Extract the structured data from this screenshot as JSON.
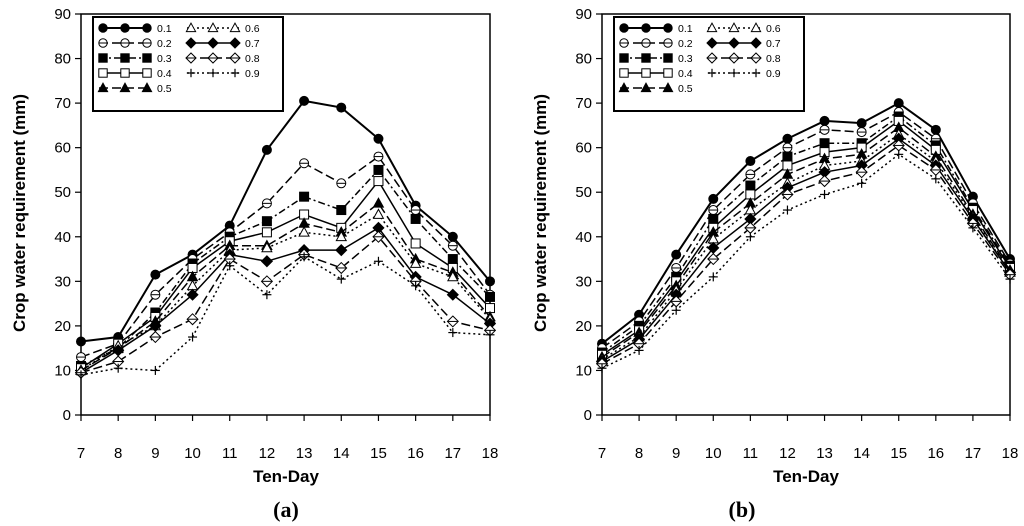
{
  "chart_data": [
    {
      "type": "line",
      "panel_label": "(a)",
      "xlabel": "Ten-Day",
      "ylabel": "Crop water requirement (mm)",
      "x": [
        7,
        8,
        9,
        10,
        11,
        12,
        13,
        14,
        15,
        16,
        17,
        18
      ],
      "xlim": [
        7,
        18
      ],
      "ylim": [
        0,
        90
      ],
      "yticks": [
        0,
        10,
        20,
        30,
        40,
        50,
        60,
        70,
        80,
        90
      ],
      "grid": false,
      "legend_position": "top-left",
      "series": [
        {
          "name": "0.1",
          "marker": "filled-circle",
          "line": "solid",
          "values": [
            16.5,
            17.5,
            31.5,
            36,
            42.5,
            59.5,
            70.5,
            69,
            62,
            47,
            40,
            30
          ]
        },
        {
          "name": "0.2",
          "marker": "open-circle",
          "line": "long-dash",
          "values": [
            13,
            16,
            27,
            35,
            41,
            47.5,
            56.5,
            52,
            58,
            46,
            38,
            27
          ]
        },
        {
          "name": "0.3",
          "marker": "filled-square",
          "line": "dash-dot",
          "values": [
            11,
            15,
            23,
            34,
            40,
            43.5,
            49,
            46,
            55,
            44,
            35,
            26.5
          ]
        },
        {
          "name": "0.4",
          "marker": "open-square",
          "line": "solid",
          "values": [
            10.5,
            16,
            22,
            33,
            39,
            41,
            45,
            42,
            52.5,
            38.5,
            33,
            24
          ]
        },
        {
          "name": "0.5",
          "marker": "filled-triangle",
          "line": "long-dash",
          "values": [
            10,
            15,
            21,
            31,
            38,
            38,
            43,
            41,
            47.5,
            35,
            32,
            22
          ]
        },
        {
          "name": "0.6",
          "marker": "open-triangle",
          "line": "dotted",
          "values": [
            10,
            15.5,
            20,
            29,
            37,
            37.5,
            41,
            40,
            45,
            34,
            31,
            21.5
          ]
        },
        {
          "name": "0.7",
          "marker": "filled-diamond",
          "line": "solid",
          "values": [
            9.5,
            14.5,
            20,
            27,
            36,
            34.5,
            37,
            37,
            42,
            31,
            27,
            20.5
          ]
        },
        {
          "name": "0.8",
          "marker": "open-diamond",
          "line": "long-dash",
          "values": [
            9.5,
            12,
            17.5,
            21.5,
            35,
            30,
            36,
            33,
            40,
            30,
            21,
            19
          ]
        },
        {
          "name": "0.9",
          "marker": "plus",
          "line": "dotted",
          "values": [
            9,
            10.5,
            10,
            17.5,
            33.5,
            27,
            35.5,
            30.5,
            34.5,
            29,
            18.5,
            18
          ]
        }
      ]
    },
    {
      "type": "line",
      "panel_label": "(b)",
      "xlabel": "Ten-Day",
      "ylabel": "Crop water requirement (mm)",
      "x": [
        7,
        8,
        9,
        10,
        11,
        12,
        13,
        14,
        15,
        16,
        17,
        18
      ],
      "xlim": [
        7,
        18
      ],
      "ylim": [
        0,
        90
      ],
      "yticks": [
        0,
        10,
        20,
        30,
        40,
        50,
        60,
        70,
        80,
        90
      ],
      "grid": false,
      "legend_position": "top-left",
      "series": [
        {
          "name": "0.1",
          "marker": "filled-circle",
          "line": "solid",
          "values": [
            16,
            22.5,
            36,
            48.5,
            57,
            62,
            66,
            65.5,
            70,
            64,
            49,
            35
          ]
        },
        {
          "name": "0.2",
          "marker": "open-circle",
          "line": "long-dash",
          "values": [
            15,
            21,
            33,
            46,
            54,
            60,
            64,
            63.5,
            68,
            62,
            47.5,
            34
          ]
        },
        {
          "name": "0.3",
          "marker": "filled-square",
          "line": "dash-dot",
          "values": [
            14,
            20,
            31,
            44,
            51.5,
            58,
            61,
            61,
            67,
            60.5,
            46.5,
            33.5
          ]
        },
        {
          "name": "0.4",
          "marker": "open-square",
          "line": "solid",
          "values": [
            13.5,
            19,
            30,
            42,
            49.5,
            56,
            59,
            60,
            66,
            59.5,
            46,
            33
          ]
        },
        {
          "name": "0.5",
          "marker": "filled-triangle",
          "line": "long-dash",
          "values": [
            13,
            18.5,
            29,
            41,
            47.5,
            54,
            57.5,
            58.5,
            64.5,
            58,
            45,
            32.5
          ]
        },
        {
          "name": "0.6",
          "marker": "open-triangle",
          "line": "dotted",
          "values": [
            12.5,
            17.5,
            28,
            39.5,
            46,
            52,
            56,
            57,
            63,
            57,
            44.5,
            32
          ]
        },
        {
          "name": "0.7",
          "marker": "filled-diamond",
          "line": "solid",
          "values": [
            12,
            17,
            27,
            37.5,
            44,
            51,
            54.5,
            56,
            62,
            56,
            44,
            32
          ]
        },
        {
          "name": "0.8",
          "marker": "open-diamond",
          "line": "long-dash",
          "values": [
            11.5,
            16,
            25.5,
            35,
            42,
            49.5,
            52.5,
            54.5,
            60.5,
            55,
            43,
            31.5
          ]
        },
        {
          "name": "0.9",
          "marker": "plus",
          "line": "dotted",
          "values": [
            10.5,
            14.5,
            23.5,
            31,
            40,
            46,
            49.5,
            52,
            58.5,
            53,
            42,
            30.5
          ]
        }
      ]
    }
  ]
}
